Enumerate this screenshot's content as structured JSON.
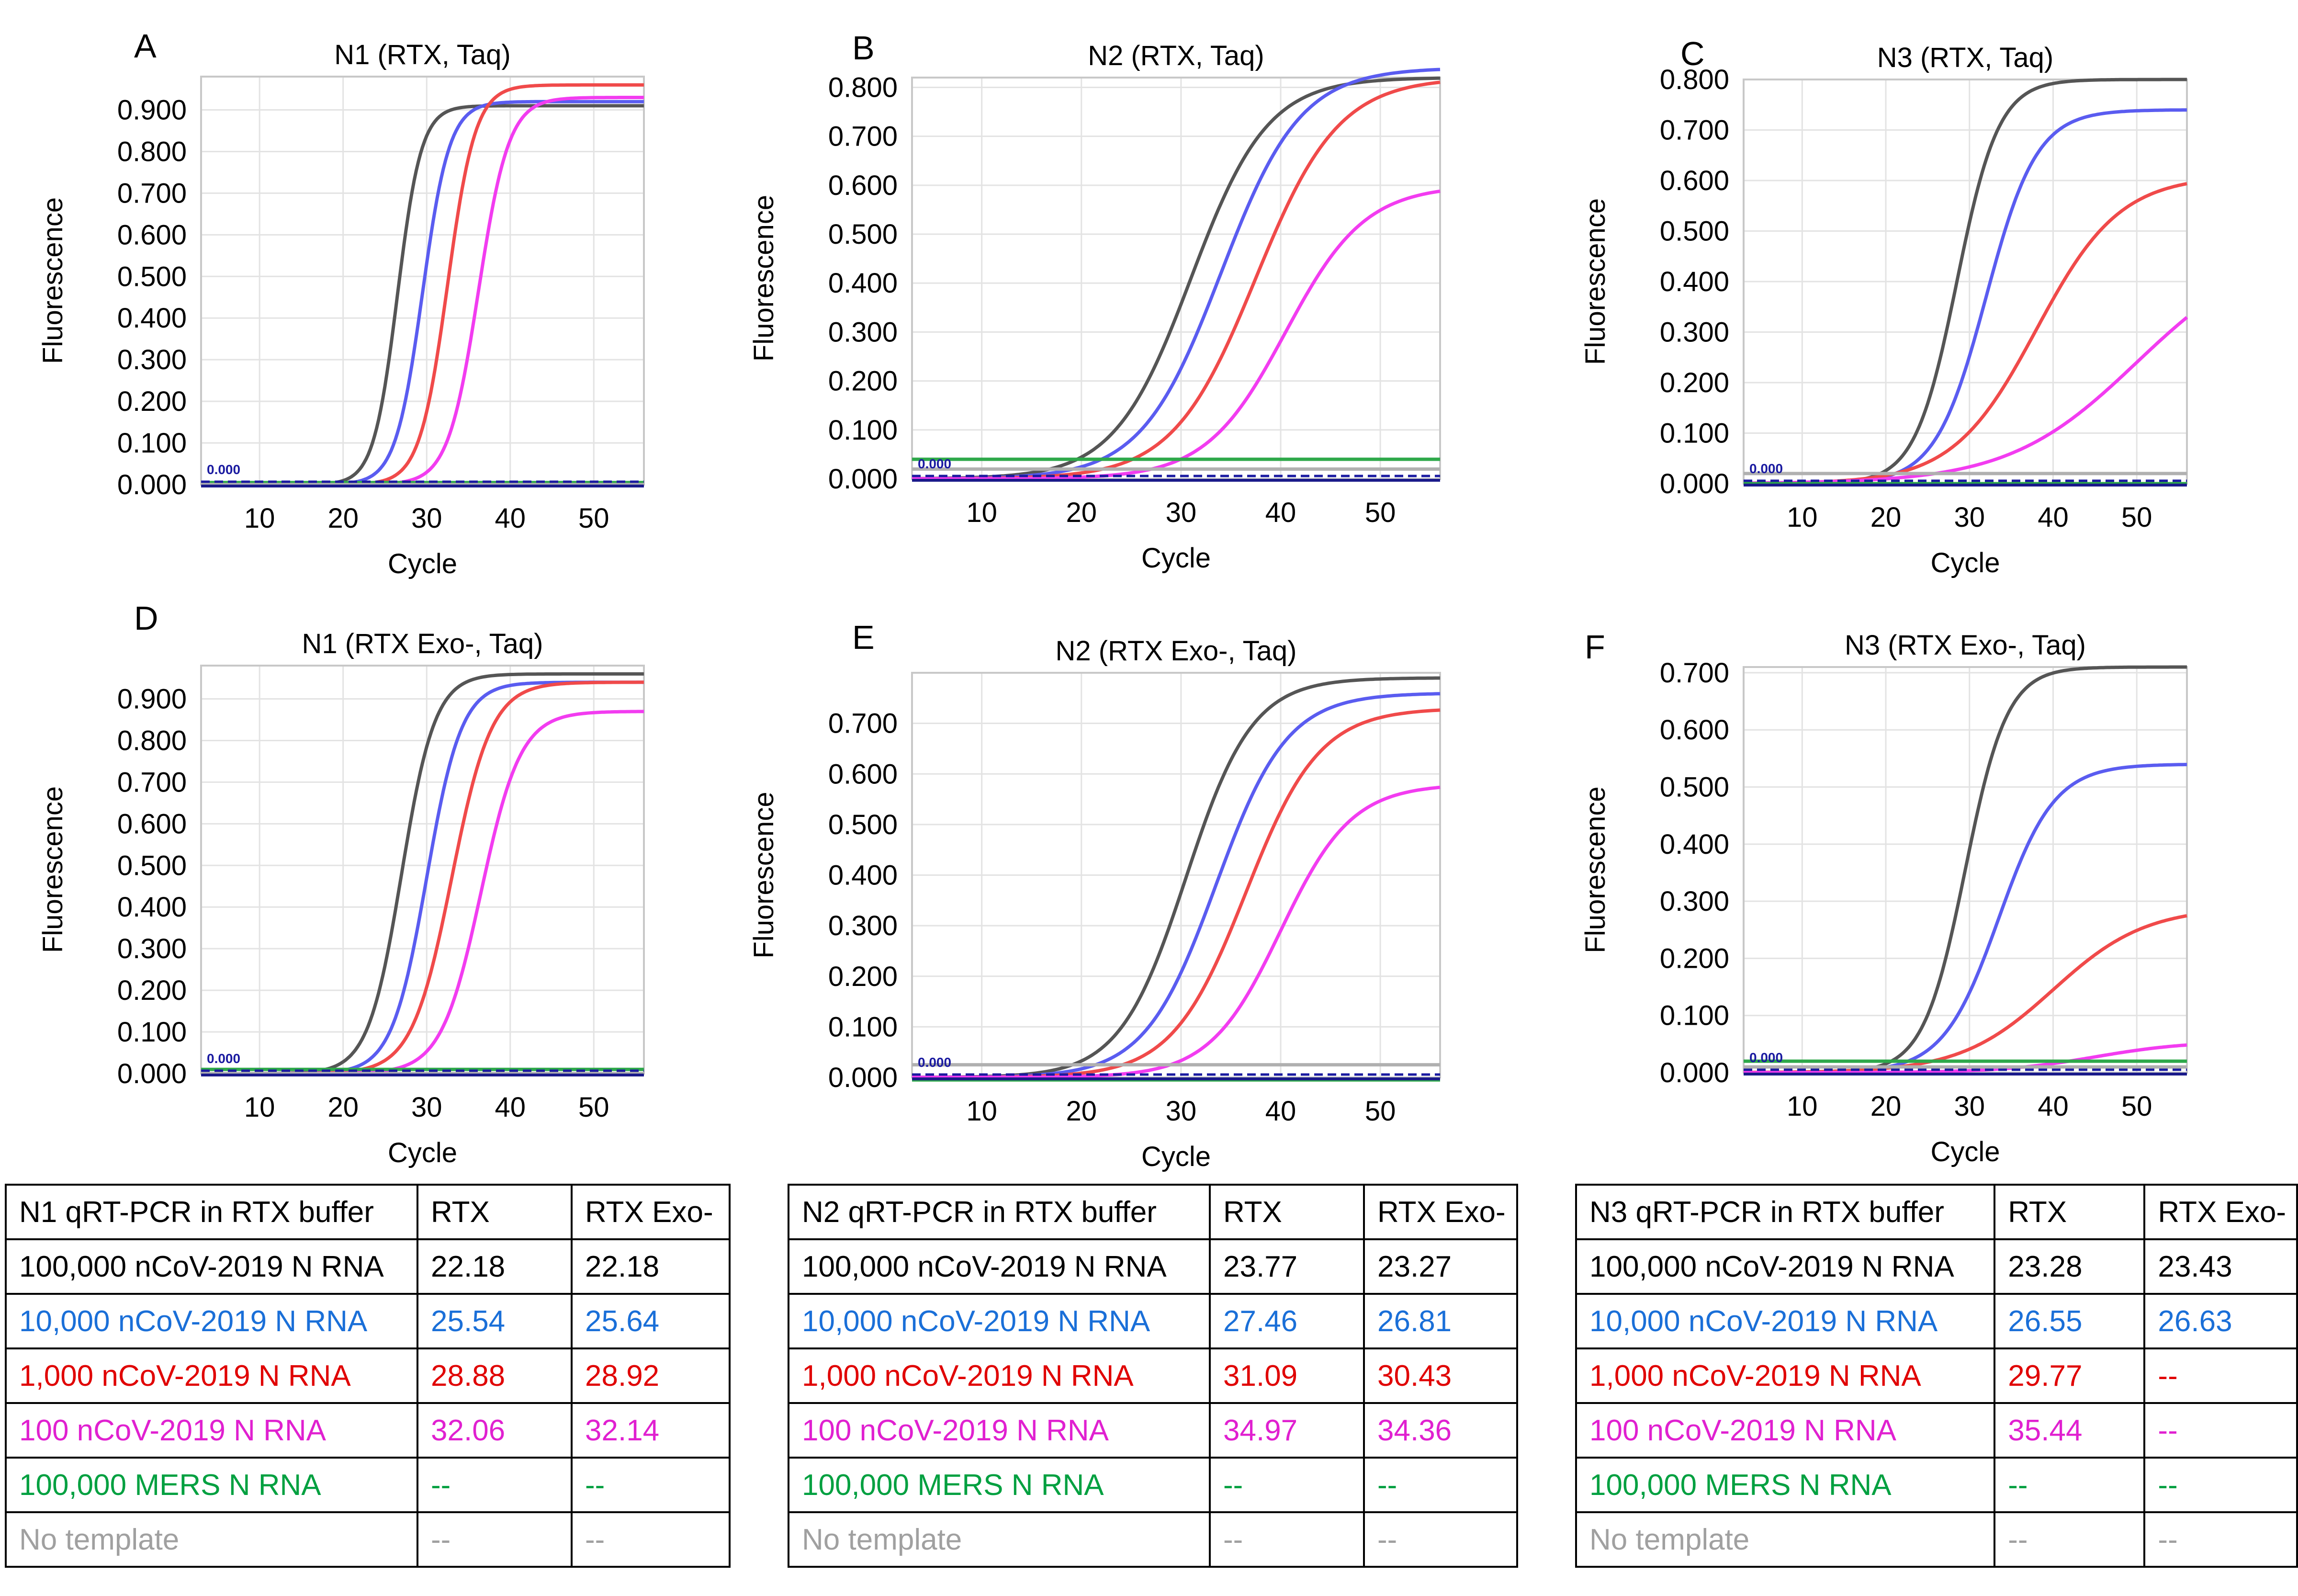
{
  "colors": {
    "black": "#555555",
    "blue": "#5a5cf0",
    "red": "#f04a4a",
    "magenta": "#f23cf0",
    "green": "#2ea84a",
    "gray": "#b0b0b0",
    "baseline": "#1a1a8a",
    "threshold": "#1a1aa0",
    "tbl_black": "#000000",
    "tbl_blue": "#1a6fd8",
    "tbl_red": "#e00000",
    "tbl_magenta": "#e020d0",
    "tbl_green": "#00a040",
    "tbl_gray": "#a0a0a0"
  },
  "chart_data": [
    {
      "panel": "A",
      "type": "line",
      "title": "N1 (RTX, Taq)",
      "xlabel": "Cycle",
      "ylabel": "Fluorescence",
      "xlim": [
        3,
        56
      ],
      "ylim": [
        0,
        0.98
      ],
      "xticks": [
        "10",
        "20",
        "30",
        "40",
        "50"
      ],
      "yticks": [
        "0.000",
        "0.100",
        "0.200",
        "0.300",
        "0.400",
        "0.500",
        "0.600",
        "0.700",
        "0.800",
        "0.900"
      ],
      "threshold_label": "0.000",
      "grid": true,
      "series": [
        {
          "color": "black",
          "ct": 22.18,
          "mid": 26.5,
          "k": 0.7,
          "plateau": 0.91
        },
        {
          "color": "blue",
          "ct": 25.54,
          "mid": 29.5,
          "k": 0.62,
          "plateau": 0.92
        },
        {
          "color": "red",
          "ct": 28.88,
          "mid": 32.5,
          "k": 0.6,
          "plateau": 0.96
        },
        {
          "color": "magenta",
          "ct": 32.06,
          "mid": 36.2,
          "k": 0.55,
          "plateau": 0.93
        },
        {
          "color": "green",
          "flat": 0.005
        },
        {
          "color": "gray",
          "flat": 0.0
        }
      ]
    },
    {
      "panel": "B",
      "type": "line",
      "title": "N2 (RTX, Taq)",
      "xlabel": "Cycle",
      "ylabel": "Fluorescence",
      "xlim": [
        3,
        56
      ],
      "ylim": [
        0,
        0.82
      ],
      "xticks": [
        "10",
        "20",
        "30",
        "40",
        "50"
      ],
      "yticks": [
        "0.000",
        "0.100",
        "0.200",
        "0.300",
        "0.400",
        "0.500",
        "0.600",
        "0.700",
        "0.800"
      ],
      "threshold_label": "0.000",
      "grid": true,
      "series": [
        {
          "color": "black",
          "ct": 23.77,
          "mid": 31.0,
          "k": 0.26,
          "plateau": 0.82
        },
        {
          "color": "blue",
          "ct": 27.46,
          "mid": 34.0,
          "k": 0.25,
          "plateau": 0.84
        },
        {
          "color": "red",
          "ct": 31.09,
          "mid": 37.5,
          "k": 0.24,
          "plateau": 0.82
        },
        {
          "color": "magenta",
          "ct": 34.97,
          "mid": 40.5,
          "k": 0.25,
          "plateau": 0.6
        },
        {
          "color": "green",
          "flat": 0.04
        },
        {
          "color": "gray",
          "flat": 0.02
        }
      ]
    },
    {
      "panel": "C",
      "type": "line",
      "title": "N3 (RTX, Taq)",
      "xlabel": "Cycle",
      "ylabel": "Fluorescence",
      "xlim": [
        3,
        56
      ],
      "ylim": [
        0,
        0.8
      ],
      "xticks": [
        "10",
        "20",
        "30",
        "40",
        "50"
      ],
      "yticks": [
        "0.000",
        "0.100",
        "0.200",
        "0.300",
        "0.400",
        "0.500",
        "0.600",
        "0.700",
        "0.800"
      ],
      "threshold_label": "0.000",
      "grid": true,
      "series": [
        {
          "color": "black",
          "ct": 23.28,
          "mid": 28.5,
          "k": 0.4,
          "plateau": 0.8
        },
        {
          "color": "blue",
          "ct": 26.55,
          "mid": 32.0,
          "k": 0.33,
          "plateau": 0.74
        },
        {
          "color": "red",
          "ct": 29.77,
          "mid": 38.0,
          "k": 0.2,
          "plateau": 0.61
        },
        {
          "color": "magenta",
          "ct": 35.44,
          "mid": 50.0,
          "k": 0.13,
          "plateau": 0.48
        },
        {
          "color": "green",
          "flat": 0.0
        },
        {
          "color": "gray",
          "flat": 0.02
        }
      ]
    },
    {
      "panel": "D",
      "type": "line",
      "title": "N1 (RTX Exo-, Taq)",
      "xlabel": "Cycle",
      "ylabel": "Fluorescence",
      "xlim": [
        3,
        56
      ],
      "ylim": [
        0,
        0.98
      ],
      "xticks": [
        "10",
        "20",
        "30",
        "40",
        "50"
      ],
      "yticks": [
        "0.000",
        "0.100",
        "0.200",
        "0.300",
        "0.400",
        "0.500",
        "0.600",
        "0.700",
        "0.800",
        "0.900"
      ],
      "threshold_label": "0.000",
      "grid": true,
      "series": [
        {
          "color": "black",
          "ct": 22.18,
          "mid": 27.0,
          "k": 0.5,
          "plateau": 0.96
        },
        {
          "color": "blue",
          "ct": 25.64,
          "mid": 30.0,
          "k": 0.48,
          "plateau": 0.94
        },
        {
          "color": "red",
          "ct": 28.92,
          "mid": 33.0,
          "k": 0.42,
          "plateau": 0.94
        },
        {
          "color": "magenta",
          "ct": 32.14,
          "mid": 36.5,
          "k": 0.42,
          "plateau": 0.87
        },
        {
          "color": "green",
          "flat": 0.01
        },
        {
          "color": "gray",
          "flat": 0.0
        }
      ]
    },
    {
      "panel": "E",
      "type": "line",
      "title": "N2 (RTX Exo-, Taq)",
      "xlabel": "Cycle",
      "ylabel": "Fluorescence",
      "xlim": [
        3,
        56
      ],
      "ylim": [
        0,
        0.8
      ],
      "xticks": [
        "10",
        "20",
        "30",
        "40",
        "50"
      ],
      "yticks": [
        "0.000",
        "0.100",
        "0.200",
        "0.300",
        "0.400",
        "0.500",
        "0.600",
        "0.700"
      ],
      "threshold_label": "0.000",
      "grid": true,
      "series": [
        {
          "color": "black",
          "ct": 23.27,
          "mid": 30.5,
          "k": 0.3,
          "plateau": 0.79
        },
        {
          "color": "blue",
          "ct": 26.81,
          "mid": 33.5,
          "k": 0.28,
          "plateau": 0.76
        },
        {
          "color": "red",
          "ct": 30.43,
          "mid": 36.5,
          "k": 0.27,
          "plateau": 0.73
        },
        {
          "color": "magenta",
          "ct": 34.36,
          "mid": 40.0,
          "k": 0.28,
          "plateau": 0.58
        },
        {
          "color": "green",
          "flat": -0.005
        },
        {
          "color": "gray",
          "flat": 0.025
        }
      ]
    },
    {
      "panel": "F",
      "type": "line",
      "title": "N3 (RTX Exo-, Taq)",
      "xlabel": "Cycle",
      "ylabel": "Fluorescence",
      "xlim": [
        3,
        56
      ],
      "ylim": [
        0,
        0.71
      ],
      "xticks": [
        "10",
        "20",
        "30",
        "40",
        "50"
      ],
      "yticks": [
        "0.000",
        "0.100",
        "0.200",
        "0.300",
        "0.400",
        "0.500",
        "0.600",
        "0.700"
      ],
      "threshold_label": "0.000",
      "grid": true,
      "series": [
        {
          "color": "black",
          "ct": 23.43,
          "mid": 29.5,
          "k": 0.4,
          "plateau": 0.71
        },
        {
          "color": "blue",
          "ct": 26.63,
          "mid": 33.5,
          "k": 0.3,
          "plateau": 0.54
        },
        {
          "color": "red",
          "mid": 40.0,
          "k": 0.18,
          "plateau": 0.29
        },
        {
          "color": "magenta",
          "mid": 45.0,
          "k": 0.18,
          "plateau": 0.055
        },
        {
          "color": "green",
          "flat": 0.02
        },
        {
          "color": "gray",
          "flat": 0.01
        }
      ]
    }
  ],
  "tables": [
    {
      "header": [
        "N1 qRT-PCR in RTX buffer",
        "RTX",
        "RTX Exo-"
      ],
      "rows": [
        {
          "color": "tbl_black",
          "cells": [
            "100,000 nCoV-2019 N RNA",
            "22.18",
            "22.18"
          ]
        },
        {
          "color": "tbl_blue",
          "cells": [
            "10,000 nCoV-2019 N RNA",
            "25.54",
            "25.64"
          ]
        },
        {
          "color": "tbl_red",
          "cells": [
            "1,000 nCoV-2019 N RNA",
            "28.88",
            "28.92"
          ]
        },
        {
          "color": "tbl_magenta",
          "cells": [
            "100 nCoV-2019 N RNA",
            "32.06",
            "32.14"
          ]
        },
        {
          "color": "tbl_green",
          "cells": [
            "100,000 MERS N RNA",
            "--",
            "--"
          ]
        },
        {
          "color": "tbl_gray",
          "cells": [
            "No template",
            "--",
            "--"
          ]
        }
      ]
    },
    {
      "header": [
        "N2 qRT-PCR in RTX buffer",
        "RTX",
        "RTX Exo-"
      ],
      "rows": [
        {
          "color": "tbl_black",
          "cells": [
            "100,000 nCoV-2019 N RNA",
            "23.77",
            "23.27"
          ]
        },
        {
          "color": "tbl_blue",
          "cells": [
            "10,000 nCoV-2019 N RNA",
            "27.46",
            "26.81"
          ]
        },
        {
          "color": "tbl_red",
          "cells": [
            "1,000 nCoV-2019 N RNA",
            "31.09",
            "30.43"
          ]
        },
        {
          "color": "tbl_magenta",
          "cells": [
            "100 nCoV-2019 N RNA",
            "34.97",
            "34.36"
          ]
        },
        {
          "color": "tbl_green",
          "cells": [
            "100,000 MERS N RNA",
            "--",
            "--"
          ]
        },
        {
          "color": "tbl_gray",
          "cells": [
            "No template",
            "--",
            "--"
          ]
        }
      ]
    },
    {
      "header": [
        "N3 qRT-PCR in RTX buffer",
        "RTX",
        "RTX Exo-"
      ],
      "rows": [
        {
          "color": "tbl_black",
          "cells": [
            "100,000 nCoV-2019 N RNA",
            "23.28",
            "23.43"
          ]
        },
        {
          "color": "tbl_blue",
          "cells": [
            "10,000 nCoV-2019 N RNA",
            "26.55",
            "26.63"
          ]
        },
        {
          "color": "tbl_red",
          "cells": [
            "1,000 nCoV-2019 N RNA",
            "29.77",
            "--"
          ]
        },
        {
          "color": "tbl_magenta",
          "cells": [
            "100 nCoV-2019 N RNA",
            "35.44",
            "--"
          ]
        },
        {
          "color": "tbl_green",
          "cells": [
            "100,000 MERS N RNA",
            "--",
            "--"
          ]
        },
        {
          "color": "tbl_gray",
          "cells": [
            "No template",
            "--",
            "--"
          ]
        }
      ]
    }
  ]
}
